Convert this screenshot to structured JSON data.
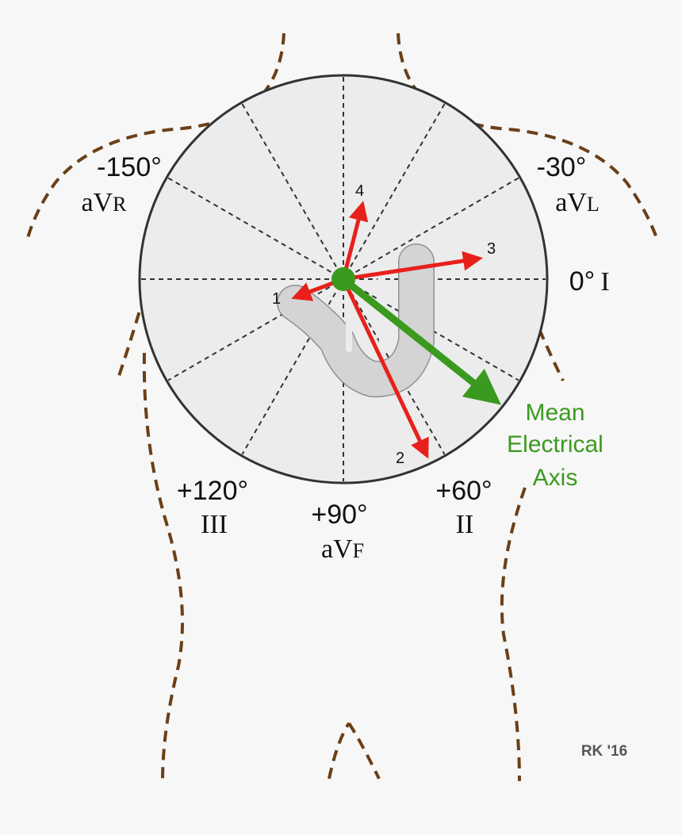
{
  "leads": [
    {
      "angle": "-150°",
      "name": "aVR"
    },
    {
      "angle": "-30°",
      "name": "aVL"
    },
    {
      "angle": "0°",
      "name": "I"
    },
    {
      "angle": "+120°",
      "name": "III"
    },
    {
      "angle": "+90°",
      "name": "aVF"
    },
    {
      "angle": "+60°",
      "name": "II"
    }
  ],
  "vectors": [
    "1",
    "2",
    "3",
    "4"
  ],
  "mean_axis": [
    "Mean",
    "Electrical",
    "Axis"
  ],
  "credit": "RK '16"
}
